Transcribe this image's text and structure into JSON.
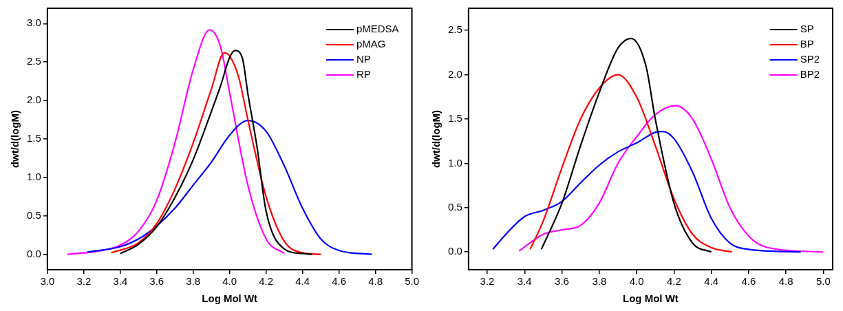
{
  "chart_data": [
    {
      "type": "line",
      "xlabel": "Log Mol Wt",
      "ylabel": "dwt/d(logM)",
      "xlim": [
        3.0,
        5.0
      ],
      "ylim": [
        -0.2,
        3.2
      ],
      "xticks": [
        {
          "value": 3.0,
          "label": "3.0"
        },
        {
          "value": 3.2,
          "label": "3.2"
        },
        {
          "value": 3.4,
          "label": "3.4"
        },
        {
          "value": 3.6,
          "label": "3.6"
        },
        {
          "value": 3.8,
          "label": "3.8"
        },
        {
          "value": 4.0,
          "label": "4.0"
        },
        {
          "value": 4.2,
          "label": "4.2"
        },
        {
          "value": 4.4,
          "label": "4.4"
        },
        {
          "value": 4.6,
          "label": "4.6"
        },
        {
          "value": 4.8,
          "label": "4.8"
        },
        {
          "value": 5.0,
          "label": "5.0"
        }
      ],
      "yticks": [
        {
          "value": 0,
          "label": "0.0"
        },
        {
          "value": 0.5,
          "label": "0.5"
        },
        {
          "value": 1,
          "label": "1.0"
        },
        {
          "value": 1.5,
          "label": "1.5"
        },
        {
          "value": 2,
          "label": "2.0"
        },
        {
          "value": 2.5,
          "label": "2.5"
        },
        {
          "value": 3,
          "label": "3.0"
        }
      ],
      "grid": false,
      "legend": "top right",
      "marker": "none",
      "line_style": "solid",
      "series": [
        {
          "name": "pMEDSA",
          "color": "#000000",
          "x": [
            3.4,
            3.5,
            3.6,
            3.7,
            3.8,
            3.9,
            3.95,
            4.0,
            4.03,
            4.07,
            4.1,
            4.15,
            4.2,
            4.3,
            4.4,
            4.45
          ],
          "values": [
            0.01,
            0.13,
            0.36,
            0.74,
            1.23,
            1.86,
            2.19,
            2.56,
            2.65,
            2.55,
            2.09,
            1.4,
            0.56,
            0.07,
            0.01,
            0
          ]
        },
        {
          "name": "pMAG",
          "color": "#ff0000",
          "x": [
            3.35,
            3.5,
            3.6,
            3.7,
            3.8,
            3.9,
            3.97,
            4.0,
            4.05,
            4.1,
            4.2,
            4.3,
            4.4,
            4.5
          ],
          "values": [
            0.02,
            0.15,
            0.4,
            0.85,
            1.45,
            2.15,
            2.62,
            2.58,
            2.3,
            1.75,
            0.75,
            0.17,
            0.02,
            0
          ]
        },
        {
          "name": "NP",
          "color": "#0000ff",
          "x": [
            3.22,
            3.4,
            3.5,
            3.6,
            3.7,
            3.8,
            3.9,
            4.0,
            4.1,
            4.2,
            4.3,
            4.4,
            4.5,
            4.6,
            4.78
          ],
          "values": [
            0.03,
            0.1,
            0.2,
            0.37,
            0.6,
            0.9,
            1.2,
            1.55,
            1.74,
            1.6,
            1.15,
            0.6,
            0.2,
            0.05,
            0
          ]
        },
        {
          "name": "RP",
          "color": "#ff00ff",
          "x": [
            3.11,
            3.3,
            3.4,
            3.5,
            3.6,
            3.7,
            3.8,
            3.89,
            3.95,
            4.0,
            4.1,
            4.2,
            4.3
          ],
          "values": [
            0,
            0.05,
            0.12,
            0.3,
            0.7,
            1.45,
            2.4,
            2.92,
            2.7,
            2.1,
            0.9,
            0.2,
            0.01
          ]
        }
      ]
    },
    {
      "type": "line",
      "xlabel": "Log Mol Wt",
      "ylabel": "dwt/d(logM)",
      "xlim": [
        3.1,
        5.05
      ],
      "ylim": [
        -0.2,
        2.75
      ],
      "xticks": [
        {
          "value": 3.2,
          "label": "3.2"
        },
        {
          "value": 3.4,
          "label": "3.4"
        },
        {
          "value": 3.6,
          "label": "3.6"
        },
        {
          "value": 3.8,
          "label": "3.8"
        },
        {
          "value": 4.0,
          "label": "4.0"
        },
        {
          "value": 4.2,
          "label": "4.2"
        },
        {
          "value": 4.4,
          "label": "4.4"
        },
        {
          "value": 4.6,
          "label": "4.6"
        },
        {
          "value": 4.8,
          "label": "4.8"
        },
        {
          "value": 5.0,
          "label": "5.0"
        }
      ],
      "yticks": [
        {
          "value": 0,
          "label": "0.0"
        },
        {
          "value": 0.5,
          "label": "0.5"
        },
        {
          "value": 1,
          "label": "1.0"
        },
        {
          "value": 1.5,
          "label": "1.5"
        },
        {
          "value": 2,
          "label": "2.0"
        },
        {
          "value": 2.5,
          "label": "2.5"
        }
      ],
      "grid": false,
      "legend": "top right",
      "marker": "none",
      "line_style": "solid",
      "series": [
        {
          "name": "SP",
          "color": "#000000",
          "x": [
            3.49,
            3.6,
            3.7,
            3.8,
            3.9,
            3.97,
            4.05,
            4.1,
            4.2,
            4.3,
            4.4
          ],
          "values": [
            0.03,
            0.55,
            1.2,
            1.8,
            2.3,
            2.41,
            2.1,
            1.5,
            0.55,
            0.1,
            0
          ]
        },
        {
          "name": "BP",
          "color": "#ff0000",
          "x": [
            3.43,
            3.5,
            3.6,
            3.7,
            3.8,
            3.9,
            4.0,
            4.1,
            4.2,
            4.3,
            4.4,
            4.51
          ],
          "values": [
            0.03,
            0.35,
            0.95,
            1.5,
            1.85,
            2.0,
            1.75,
            1.2,
            0.6,
            0.2,
            0.05,
            0
          ]
        },
        {
          "name": "SP2",
          "color": "#0000ff",
          "x": [
            3.23,
            3.3,
            3.4,
            3.5,
            3.6,
            3.7,
            3.8,
            3.9,
            4.0,
            4.1,
            4.14,
            4.2,
            4.3,
            4.4,
            4.5,
            4.6,
            4.88
          ],
          "values": [
            0.03,
            0.2,
            0.4,
            0.47,
            0.57,
            0.78,
            0.98,
            1.13,
            1.23,
            1.35,
            1.36,
            1.28,
            0.9,
            0.38,
            0.1,
            0.03,
            0
          ]
        },
        {
          "name": "BP2",
          "color": "#ff00ff",
          "x": [
            3.37,
            3.5,
            3.6,
            3.7,
            3.8,
            3.9,
            4.0,
            4.1,
            4.21,
            4.3,
            4.4,
            4.5,
            4.6,
            4.7,
            5.0
          ],
          "values": [
            0.01,
            0.2,
            0.25,
            0.3,
            0.55,
            1.0,
            1.3,
            1.55,
            1.65,
            1.5,
            1.05,
            0.5,
            0.18,
            0.05,
            0
          ]
        }
      ]
    }
  ]
}
